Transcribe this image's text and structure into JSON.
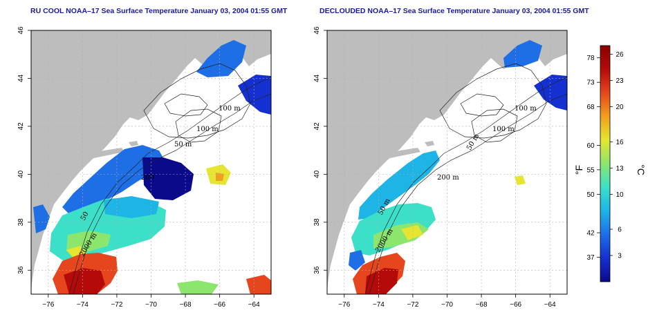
{
  "panels": [
    {
      "id": "left",
      "title": "RU COOL NOAA–17 Sea Surface Temperature January 03, 2004 01:55 GMT",
      "contour_labels": [
        "100 m",
        "100 m",
        "50 m",
        "200",
        "50",
        "2000 m"
      ]
    },
    {
      "id": "right",
      "title": "DECLOUDED NOAA–17 Sea Surface Temperature January 03, 2004 01:55 GMT",
      "contour_labels": [
        "100 m",
        "100 m",
        "50 m",
        "200 m",
        "50 m",
        "2000 m"
      ]
    }
  ],
  "axes": {
    "x_ticks": [
      "−76",
      "−74",
      "−72",
      "−70",
      "−68",
      "−66",
      "−64"
    ],
    "y_ticks": [
      "36",
      "38",
      "40",
      "42",
      "44",
      "46"
    ]
  },
  "colorbar": {
    "fahrenheit_label": "°F",
    "celsius_label": "°C",
    "fahrenheit_ticks": [
      {
        "label": "78",
        "value_c": 25.6
      },
      {
        "label": "73",
        "value_c": 22.8
      },
      {
        "label": "68",
        "value_c": 20.0
      },
      {
        "label": "60",
        "value_c": 15.6
      },
      {
        "label": "55",
        "value_c": 12.8
      },
      {
        "label": "50",
        "value_c": 10.0
      },
      {
        "label": "42",
        "value_c": 5.6
      },
      {
        "label": "37",
        "value_c": 2.8
      }
    ],
    "celsius_ticks": [
      {
        "label": "26",
        "value_c": 26
      },
      {
        "label": "23",
        "value_c": 23
      },
      {
        "label": "20",
        "value_c": 20
      },
      {
        "label": "16",
        "value_c": 16
      },
      {
        "label": "13",
        "value_c": 13
      },
      {
        "label": "10",
        "value_c": 10
      },
      {
        "label": "6",
        "value_c": 6
      },
      {
        "label": "3",
        "value_c": 3
      }
    ],
    "range_c": [
      0,
      27
    ],
    "colors": [
      "#0a0a8a",
      "#1530d0",
      "#1e6ee6",
      "#1eb4e6",
      "#3ce0c8",
      "#8ce66e",
      "#e6e632",
      "#f0a01e",
      "#e6461e",
      "#b40a0a",
      "#8a0000"
    ]
  },
  "colors": {
    "land": "#bdbdbd",
    "title": "#1a1aa0",
    "grid": "#b0b0b0"
  }
}
